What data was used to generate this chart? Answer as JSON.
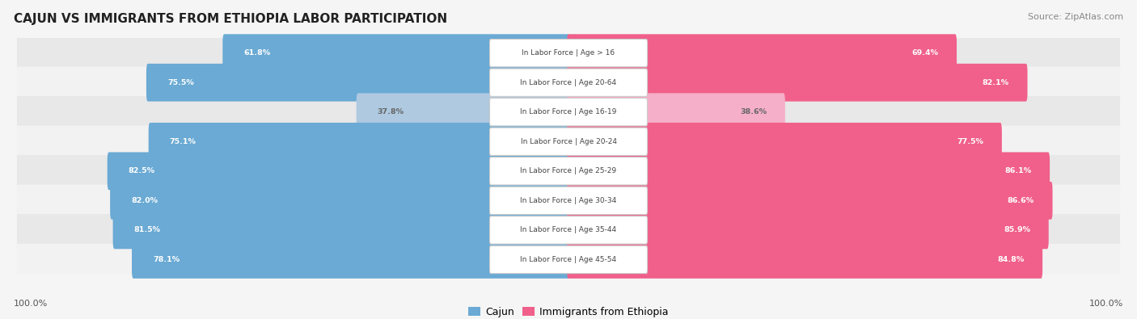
{
  "title": "CAJUN VS IMMIGRANTS FROM ETHIOPIA LABOR PARTICIPATION",
  "source": "Source: ZipAtlas.com",
  "categories": [
    "In Labor Force | Age > 16",
    "In Labor Force | Age 20-64",
    "In Labor Force | Age 16-19",
    "In Labor Force | Age 20-24",
    "In Labor Force | Age 25-29",
    "In Labor Force | Age 30-34",
    "In Labor Force | Age 35-44",
    "In Labor Force | Age 45-54"
  ],
  "cajun_values": [
    61.8,
    75.5,
    37.8,
    75.1,
    82.5,
    82.0,
    81.5,
    78.1
  ],
  "ethiopia_values": [
    69.4,
    82.1,
    38.6,
    77.5,
    86.1,
    86.6,
    85.9,
    84.8
  ],
  "cajun_color": "#6aaad4",
  "cajun_color_light": "#aec9e0",
  "ethiopia_color": "#f0608a",
  "ethiopia_color_light": "#f5afc8",
  "row_bg_odd": "#e8e8e8",
  "row_bg_even": "#f2f2f2",
  "bg_color": "#f5f5f5",
  "title_color": "#222222",
  "source_color": "#888888",
  "label_color": "#444444",
  "value_color_normal": "#ffffff",
  "value_color_light": "#666666",
  "legend_cajun": "Cajun",
  "legend_ethiopia": "Immigrants from Ethiopia",
  "figsize": [
    14.06,
    3.95
  ],
  "dpi": 100
}
